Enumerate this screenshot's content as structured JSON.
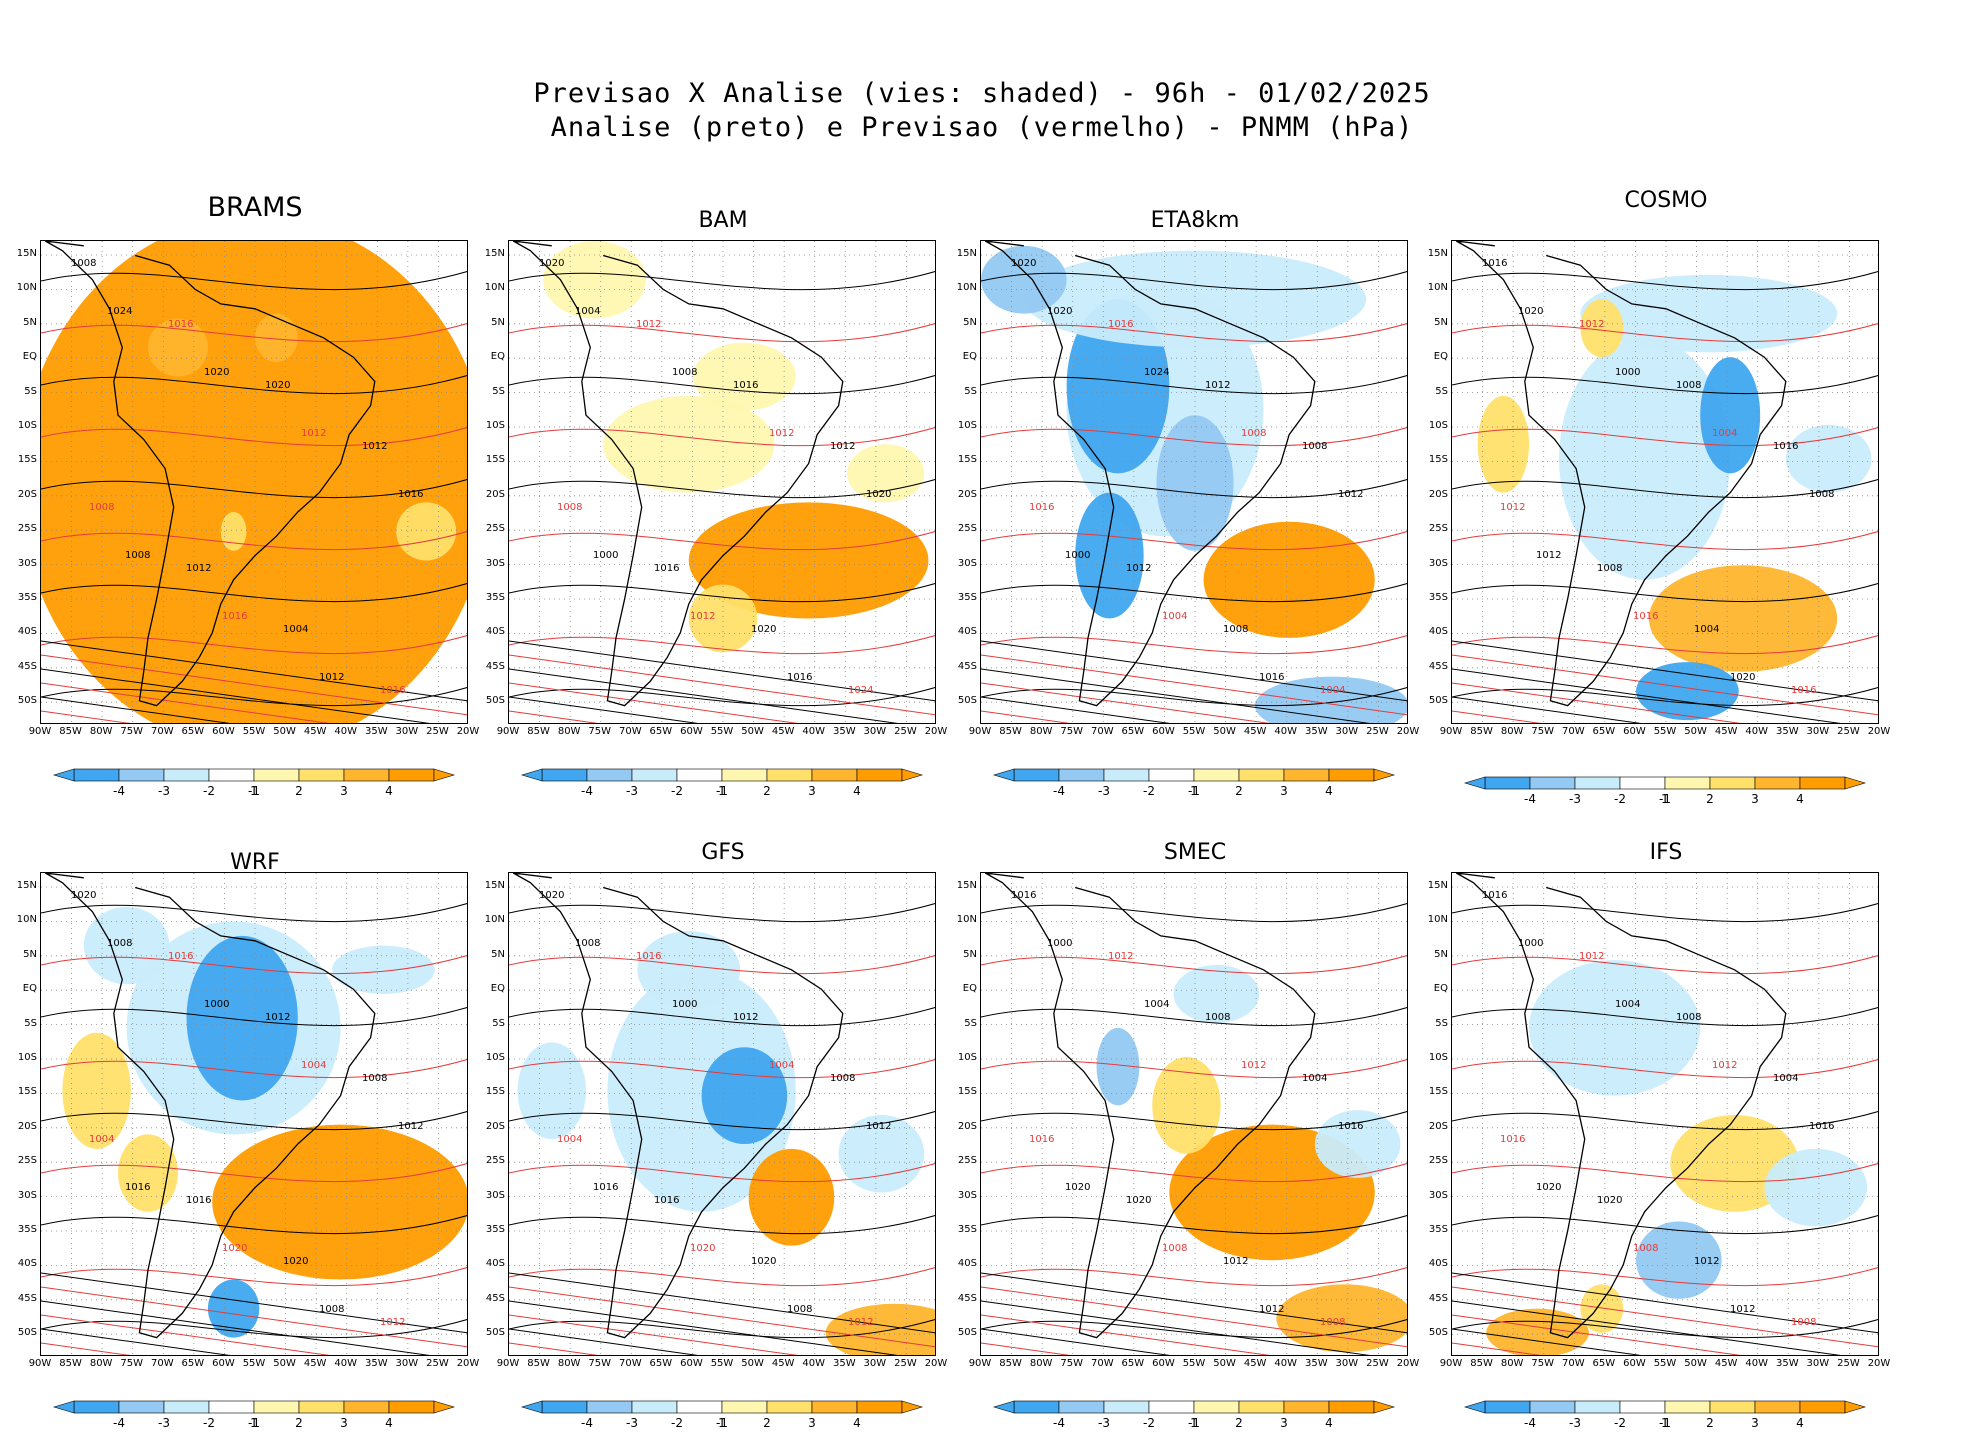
{
  "title": {
    "line1": "Previsao X Analise (vies: shaded) - 96h - 01/02/2025",
    "line2": "Analise (preto) e Previsao (vermelho) - PNMM (hPa)"
  },
  "colors": {
    "neg4": "#3fa6ef",
    "neg3": "#93c9f2",
    "neg2": "#c9ecfb",
    "neg1": "#ffffff",
    "pos1": "#fff7b0",
    "pos2": "#ffe06a",
    "pos3": "#ffb52e",
    "pos4": "#ff9c00",
    "analysis_line": "#000000",
    "forecast_line": "#e43b3b"
  },
  "lat_labels": [
    "15N",
    "10N",
    "5N",
    "EQ",
    "5S",
    "10S",
    "15S",
    "20S",
    "25S",
    "30S",
    "35S",
    "40S",
    "45S",
    "50S"
  ],
  "lon_labels": [
    "90W",
    "85W",
    "80W",
    "75W",
    "70W",
    "65W",
    "60W",
    "55W",
    "50W",
    "45W",
    "40W",
    "35W",
    "30W",
    "25W",
    "20W"
  ],
  "colorbar_labels": [
    "-4",
    "-3",
    "-2",
    "-1",
    "1",
    "2",
    "3",
    "4"
  ],
  "panels": [
    {
      "name": "BRAMS",
      "bias": "warm-all",
      "isobars": [
        "1008",
        "1016",
        "1020",
        "1012",
        "1008",
        "1012",
        "1004",
        "1016",
        "1024",
        "1020",
        "1012",
        "1016",
        "1008",
        "1016",
        "1012"
      ]
    },
    {
      "name": "BAM",
      "bias": "warm-south",
      "isobars": [
        "1020",
        "1012",
        "1016",
        "1012",
        "1008",
        "1016",
        "1020",
        "1024",
        "1004",
        "1008",
        "1012",
        "1020",
        "1000",
        "1012",
        "1016"
      ]
    },
    {
      "name": "ETA8km",
      "bias": "cold-land",
      "isobars": [
        "1020",
        "1016",
        "1012",
        "1008",
        "1016",
        "1012",
        "1008",
        "1004",
        "1020",
        "1024",
        "1008",
        "1012",
        "1000",
        "1004",
        "1016"
      ]
    },
    {
      "name": "COSMO",
      "bias": "mixed",
      "isobars": [
        "1016",
        "1012",
        "1008",
        "1016",
        "1012",
        "1008",
        "1004",
        "1016",
        "1020",
        "1000",
        "1004",
        "1008",
        "1012",
        "1016",
        "1020"
      ]
    },
    {
      "name": "WRF",
      "bias": "cold-land-warm-sea",
      "isobars": [
        "1020",
        "1016",
        "1012",
        "1008",
        "1004",
        "1016",
        "1020",
        "1012",
        "1008",
        "1000",
        "1004",
        "1012",
        "1016",
        "1020",
        "1008"
      ]
    },
    {
      "name": "GFS",
      "bias": "cold-center",
      "isobars": [
        "1020",
        "1016",
        "1012",
        "1008",
        "1004",
        "1016",
        "1020",
        "1012",
        "1008",
        "1000",
        "1004",
        "1012",
        "1016",
        "1020",
        "1008"
      ]
    },
    {
      "name": "SMEC",
      "bias": "warm-sea",
      "isobars": [
        "1016",
        "1012",
        "1008",
        "1004",
        "1016",
        "1020",
        "1012",
        "1008",
        "1000",
        "1004",
        "1012",
        "1016",
        "1020",
        "1008",
        "1012"
      ]
    },
    {
      "name": "IFS",
      "bias": "slight",
      "isobars": [
        "1016",
        "1012",
        "1008",
        "1004",
        "1016",
        "1020",
        "1012",
        "1008",
        "1000",
        "1004",
        "1012",
        "1016",
        "1020",
        "1008",
        "1012"
      ]
    }
  ]
}
